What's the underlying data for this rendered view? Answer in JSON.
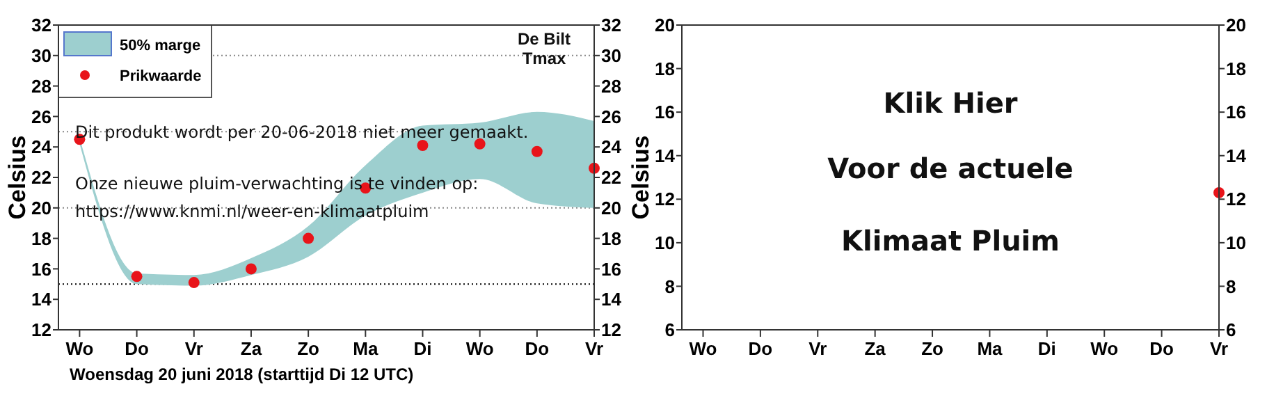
{
  "chart_data": [
    {
      "type": "scatter",
      "categories": [
        "Wo",
        "Do",
        "Vr",
        "Za",
        "Zo",
        "Ma",
        "Di",
        "Wo",
        "Do",
        "Vr"
      ],
      "xlabel": "Woensdag 20 juni 2018 (starttijd Di 12 UTC)",
      "ylabel": "Celsius",
      "ylim": [
        12,
        32
      ],
      "yticks": [
        12,
        14,
        16,
        18,
        20,
        22,
        24,
        26,
        28,
        30,
        32
      ],
      "y2lim": [
        12,
        32
      ],
      "y2ticks": [
        12,
        14,
        16,
        18,
        20,
        22,
        24,
        26,
        28,
        30,
        32
      ],
      "legend": "top left",
      "marker": "circle",
      "series": [
        {
          "name": "50% marge",
          "type": "area",
          "color": "#9dcfcf",
          "values": [
            null,
            null,
            null,
            null,
            null,
            null,
            null,
            null,
            null,
            null
          ],
          "lower": [
            24.2,
            15.0,
            14.9,
            15.6,
            16.8,
            19.5,
            21.0,
            21.9,
            20.3,
            20.0
          ],
          "upper": [
            24.6,
            15.7,
            15.6,
            16.7,
            18.8,
            22.8,
            25.4,
            25.6,
            26.3,
            25.7
          ]
        },
        {
          "name": "Prikwaarde",
          "color": "#e8141a",
          "values": [
            24.5,
            15.5,
            15.1,
            16.0,
            18.0,
            21.3,
            24.1,
            24.2,
            23.7,
            22.6
          ]
        }
      ],
      "ref_lines": [
        {
          "axis": "y",
          "value": 15,
          "line_style": "dotted",
          "color": "#000000"
        },
        {
          "axis": "y",
          "value": 20,
          "line_style": "dotted",
          "color": "#888888"
        },
        {
          "axis": "y",
          "value": 25,
          "line_style": "dotted",
          "color": "#888888"
        },
        {
          "axis": "y",
          "value": 30,
          "line_style": "dotted",
          "color": "#888888"
        }
      ],
      "annotations": [
        "De Bilt",
        "Tmax",
        "Dit produkt wordt per 20-06-2018 niet meer gemaakt.",
        "Onze nieuwe pluim-verwachting is te vinden op:",
        "https://www.knmi.nl/weer-en-klimaatpluim"
      ]
    },
    {
      "type": "scatter",
      "categories": [
        "Wo",
        "Do",
        "Vr",
        "Za",
        "Zo",
        "Ma",
        "Di",
        "Wo",
        "Do",
        "Vr"
      ],
      "ylabel": "Celsius",
      "ylim": [
        6,
        20
      ],
      "yticks": [
        6,
        8,
        10,
        12,
        14,
        16,
        18,
        20
      ],
      "y2lim": [
        6,
        20
      ],
      "y2ticks": [
        6,
        8,
        10,
        12,
        14,
        16,
        18,
        20
      ],
      "marker": "circle",
      "series": [
        {
          "color": "#e8141a",
          "values": [
            null,
            null,
            null,
            null,
            null,
            null,
            null,
            null,
            null,
            12.3
          ]
        }
      ],
      "annotations": [
        "Klik Hier",
        "Voor de actuele",
        "Klimaat Pluim"
      ]
    }
  ]
}
